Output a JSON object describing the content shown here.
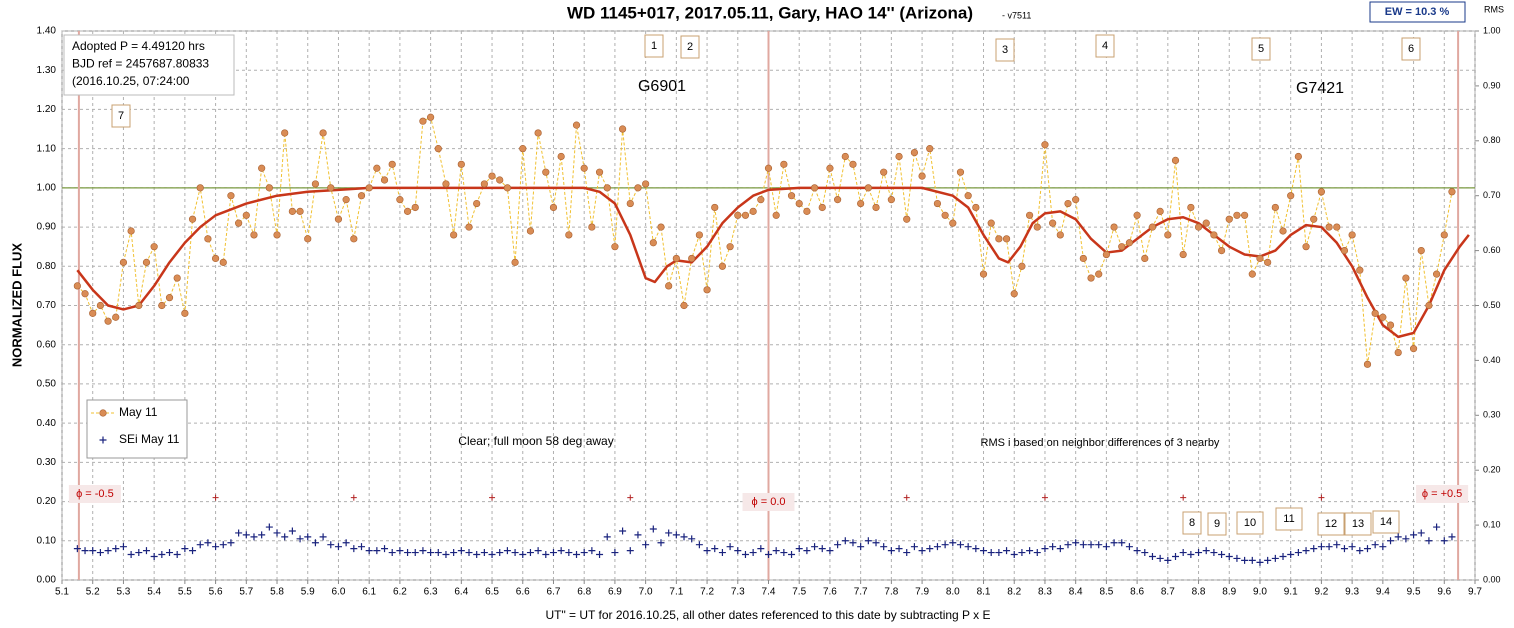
{
  "chart_data": {
    "type": "line",
    "title": "WD 1145+017, 2017.05.11, Gary, HAO 14'' (Arizona)",
    "subtitle": "- v7511",
    "ylabel": "NORMALIZED FLUX",
    "y2label": "RMS",
    "xlabel": "UT\" = UT for 2016.10.25, all other dates referenced to this date by subtracting P x E",
    "ew": "EW = 10.3 %",
    "info": [
      "Adopted P = 4.49120  hrs",
      "BJD ref = 2457687.80833",
      "(2016.10.25,  07:24:00"
    ],
    "annotations": [
      "G6901",
      "G7421",
      "Clear; full moon 58 deg away",
      "RMS i based on neighbor differences of 3 nearby"
    ],
    "dip_labels": [
      "1",
      "2",
      "3",
      "4",
      "5",
      "6",
      "7",
      "8",
      "9",
      "10",
      "11",
      "12",
      "13",
      "14"
    ],
    "x": [
      5.15,
      5.175,
      5.2,
      5.225,
      5.25,
      5.275,
      5.3,
      5.325,
      5.35,
      5.375,
      5.4,
      5.425,
      5.45,
      5.475,
      5.5,
      5.525,
      5.55,
      5.575,
      5.6,
      5.625,
      5.65,
      5.675,
      5.7,
      5.725,
      5.75,
      5.775,
      5.8,
      5.825,
      5.85,
      5.875,
      5.9,
      5.925,
      5.95,
      5.975,
      6.0,
      6.025,
      6.05,
      6.075,
      6.1,
      6.125,
      6.15,
      6.175,
      6.2,
      6.225,
      6.25,
      6.275,
      6.3,
      6.325,
      6.35,
      6.375,
      6.4,
      6.425,
      6.45,
      6.475,
      6.5,
      6.525,
      6.55,
      6.575,
      6.6,
      6.625,
      6.65,
      6.675,
      6.7,
      6.725,
      6.75,
      6.775,
      6.8,
      6.825,
      6.85,
      6.875,
      6.9,
      6.925,
      6.95,
      6.975,
      7.0,
      7.025,
      7.05,
      7.075,
      7.1,
      7.125,
      7.15,
      7.175,
      7.2,
      7.225,
      7.25,
      7.275,
      7.3,
      7.325,
      7.35,
      7.375,
      7.4,
      7.425,
      7.45,
      7.475,
      7.5,
      7.525,
      7.55,
      7.575,
      7.6,
      7.625,
      7.65,
      7.675,
      7.7,
      7.725,
      7.75,
      7.775,
      7.8,
      7.825,
      7.85,
      7.875,
      7.9,
      7.925,
      7.95,
      7.975,
      8.0,
      8.025,
      8.05,
      8.075,
      8.1,
      8.125,
      8.15,
      8.175,
      8.2,
      8.225,
      8.25,
      8.275,
      8.3,
      8.325,
      8.35,
      8.375,
      8.4,
      8.425,
      8.45,
      8.475,
      8.5,
      8.525,
      8.55,
      8.575,
      8.6,
      8.625,
      8.65,
      8.675,
      8.7,
      8.725,
      8.75,
      8.775,
      8.8,
      8.825,
      8.85,
      8.875,
      8.9,
      8.925,
      8.95,
      8.975,
      9.0,
      9.025,
      9.05,
      9.075,
      9.1,
      9.125,
      9.15,
      9.175,
      9.2,
      9.225,
      9.25,
      9.275,
      9.3,
      9.325,
      9.35,
      9.375,
      9.4,
      9.425,
      9.45,
      9.475,
      9.5,
      9.525,
      9.55,
      9.575,
      9.6,
      9.625
    ],
    "series": [
      {
        "name": "May 11",
        "color": "#d98c55",
        "values": [
          0.75,
          0.73,
          0.68,
          0.7,
          0.66,
          0.67,
          0.81,
          0.89,
          0.7,
          0.81,
          0.85,
          0.7,
          0.72,
          0.77,
          0.68,
          0.92,
          1.0,
          0.87,
          0.82,
          0.81,
          0.98,
          0.91,
          0.93,
          0.88,
          1.05,
          1.0,
          0.88,
          1.14,
          0.94,
          0.94,
          0.87,
          1.01,
          1.14,
          1.0,
          0.92,
          0.97,
          0.87,
          0.98,
          1.0,
          1.05,
          1.02,
          1.06,
          0.97,
          0.94,
          0.95,
          1.17,
          1.18,
          1.1,
          1.01,
          0.88,
          1.06,
          0.9,
          0.96,
          1.01,
          1.03,
          1.02,
          1.0,
          0.81,
          1.1,
          0.89,
          1.14,
          1.04,
          0.95,
          1.08,
          0.88,
          1.16,
          1.05,
          0.9,
          1.04,
          1.0,
          0.85,
          1.15,
          0.96,
          1.0,
          1.01,
          0.86,
          0.9,
          0.75,
          0.82,
          0.7,
          0.82,
          0.88,
          0.74,
          0.95,
          0.8,
          0.85,
          0.93,
          0.93,
          0.94,
          0.97,
          1.05,
          0.93,
          1.06,
          0.98,
          0.96,
          0.94,
          1.0,
          0.95,
          1.05,
          0.97,
          1.08,
          1.06,
          0.96,
          1.0,
          0.95,
          1.04,
          0.97,
          1.08,
          0.92,
          1.09,
          1.03,
          1.1,
          0.96,
          0.93,
          0.91,
          1.04,
          0.98,
          0.95,
          0.78,
          0.91,
          0.87,
          0.87,
          0.73,
          0.8,
          0.93,
          0.9,
          1.11,
          0.91,
          0.88,
          0.96,
          0.97,
          0.82,
          0.77,
          0.78,
          0.83,
          0.9,
          0.85,
          0.86,
          0.93,
          0.82,
          0.9,
          0.94,
          0.88,
          1.07,
          0.83,
          0.95,
          0.9,
          0.91,
          0.88,
          0.84,
          0.92,
          0.93,
          0.93,
          0.78,
          0.82,
          0.81,
          0.95,
          0.89,
          0.98,
          1.08,
          0.85,
          0.92,
          0.99,
          0.9,
          0.9,
          0.84,
          0.88,
          0.79,
          0.55,
          0.68,
          0.67,
          0.65,
          0.58,
          0.77,
          0.59,
          0.84,
          0.7,
          0.78,
          0.88,
          0.99
        ]
      },
      {
        "name": "SEi May 11",
        "color": "#1a237e",
        "values": [
          0.08,
          0.075,
          0.075,
          0.07,
          0.075,
          0.08,
          0.085,
          0.065,
          0.07,
          0.075,
          0.06,
          0.065,
          0.07,
          0.065,
          0.08,
          0.075,
          0.09,
          0.095,
          0.085,
          0.09,
          0.095,
          0.12,
          0.115,
          0.11,
          0.115,
          0.135,
          0.12,
          0.11,
          0.125,
          0.105,
          0.11,
          0.095,
          0.11,
          0.09,
          0.085,
          0.095,
          0.08,
          0.085,
          0.075,
          0.075,
          0.08,
          0.07,
          0.075,
          0.07,
          0.07,
          0.075,
          0.07,
          0.07,
          0.065,
          0.07,
          0.075,
          0.07,
          0.065,
          0.07,
          0.065,
          0.07,
          0.075,
          0.07,
          0.065,
          0.07,
          0.075,
          0.065,
          0.07,
          0.075,
          0.07,
          0.065,
          0.07,
          0.075,
          0.065,
          0.11,
          0.07,
          0.125,
          0.075,
          0.115,
          0.09,
          0.13,
          0.095,
          0.12,
          0.115,
          0.11,
          0.105,
          0.09,
          0.075,
          0.08,
          0.07,
          0.085,
          0.075,
          0.065,
          0.07,
          0.08,
          0.065,
          0.075,
          0.07,
          0.065,
          0.08,
          0.075,
          0.085,
          0.08,
          0.075,
          0.09,
          0.1,
          0.095,
          0.085,
          0.1,
          0.095,
          0.085,
          0.075,
          0.08,
          0.07,
          0.085,
          0.075,
          0.08,
          0.085,
          0.09,
          0.095,
          0.09,
          0.085,
          0.08,
          0.075,
          0.07,
          0.07,
          0.075,
          0.065,
          0.07,
          0.075,
          0.07,
          0.08,
          0.085,
          0.08,
          0.09,
          0.095,
          0.09,
          0.09,
          0.09,
          0.085,
          0.095,
          0.095,
          0.085,
          0.075,
          0.07,
          0.06,
          0.055,
          0.05,
          0.06,
          0.07,
          0.065,
          0.07,
          0.075,
          0.07,
          0.065,
          0.06,
          0.055,
          0.05,
          0.05,
          0.045,
          0.05,
          0.055,
          0.06,
          0.065,
          0.07,
          0.075,
          0.08,
          0.085,
          0.085,
          0.09,
          0.08,
          0.085,
          0.075,
          0.08,
          0.09,
          0.085,
          0.1,
          0.11,
          0.105,
          0.115,
          0.12,
          0.1,
          0.135,
          0.1,
          0.11
        ]
      }
    ],
    "fit": {
      "color": "#c8361a",
      "x": [
        5.15,
        5.2,
        5.25,
        5.3,
        5.35,
        5.4,
        5.45,
        5.5,
        5.55,
        5.6,
        5.7,
        5.8,
        5.9,
        6.0,
        6.1,
        6.3,
        6.5,
        6.7,
        6.8,
        6.85,
        6.9,
        6.95,
        7.0,
        7.03,
        7.07,
        7.1,
        7.15,
        7.2,
        7.25,
        7.3,
        7.35,
        7.4,
        7.5,
        7.9,
        8.0,
        8.05,
        8.1,
        8.15,
        8.18,
        8.22,
        8.26,
        8.3,
        8.35,
        8.4,
        8.45,
        8.5,
        8.55,
        8.6,
        8.65,
        8.7,
        8.75,
        8.8,
        8.85,
        8.9,
        8.95,
        9.0,
        9.05,
        9.1,
        9.15,
        9.2,
        9.25,
        9.3,
        9.35,
        9.4,
        9.45,
        9.5,
        9.55,
        9.6,
        9.65,
        9.68
      ],
      "values": [
        0.79,
        0.74,
        0.7,
        0.69,
        0.7,
        0.75,
        0.81,
        0.86,
        0.9,
        0.93,
        0.96,
        0.98,
        0.99,
        0.995,
        1.0,
        1.0,
        1.0,
        1.0,
        1.0,
        0.99,
        0.96,
        0.88,
        0.77,
        0.76,
        0.8,
        0.815,
        0.81,
        0.85,
        0.91,
        0.95,
        0.98,
        0.995,
        1.0,
        1.0,
        0.98,
        0.95,
        0.88,
        0.82,
        0.81,
        0.85,
        0.91,
        0.935,
        0.94,
        0.92,
        0.87,
        0.835,
        0.84,
        0.87,
        0.9,
        0.92,
        0.925,
        0.91,
        0.88,
        0.85,
        0.83,
        0.825,
        0.84,
        0.88,
        0.905,
        0.9,
        0.86,
        0.8,
        0.72,
        0.65,
        0.62,
        0.63,
        0.7,
        0.79,
        0.85,
        0.88
      ]
    },
    "baseline": {
      "value": 1.0,
      "color": "#7a9a40"
    },
    "phase_lines": [
      {
        "x": 5.155,
        "label": "ϕ = -0.5"
      },
      {
        "x": 7.4,
        "label": "ϕ = 0.0"
      },
      {
        "x": 9.645,
        "label": "ϕ = +0.5"
      }
    ],
    "markers": {
      "color": "#b22222",
      "x": [
        5.6,
        6.05,
        6.5,
        6.95,
        7.85,
        8.3,
        8.75,
        9.2
      ],
      "values": [
        0.21,
        0.21,
        0.21,
        0.21,
        0.21,
        0.21,
        0.21,
        0.21
      ]
    },
    "xlim": [
      5.1,
      9.7
    ],
    "ylim": [
      0,
      1.4
    ],
    "y2lim": [
      0,
      1.0
    ],
    "xticks": [
      5.1,
      5.2,
      5.3,
      5.4,
      5.5,
      5.6,
      5.7,
      5.8,
      5.9,
      {
        "value": 6,
        "label": "6.0"
      },
      6.1,
      6.2,
      6.3,
      6.4,
      6.5,
      6.6,
      6.7,
      6.8,
      6.9,
      {
        "value": 7,
        "label": "7.0"
      },
      7.1,
      7.2,
      7.3,
      7.4,
      7.5,
      7.6,
      7.7,
      7.8,
      7.9,
      {
        "value": 8,
        "label": "8.0"
      },
      8.1,
      8.2,
      8.3,
      8.4,
      8.5,
      8.6,
      8.7,
      8.8,
      8.9,
      {
        "value": 9,
        "label": "9.0"
      },
      9.1,
      9.2,
      9.3,
      9.4,
      9.5,
      9.6,
      9.7
    ],
    "yticks": [
      {
        "value": 0,
        "label": "0.00"
      },
      {
        "value": 0.1,
        "label": "0.10"
      },
      {
        "value": 0.2,
        "label": "0.20"
      },
      {
        "value": 0.3,
        "label": "0.30"
      },
      {
        "value": 0.4,
        "label": "0.40"
      },
      {
        "value": 0.5,
        "label": "0.50"
      },
      {
        "value": 0.6,
        "label": "0.60"
      },
      {
        "value": 0.7,
        "label": "0.70"
      },
      {
        "value": 0.8,
        "label": "0.80"
      },
      {
        "value": 0.9,
        "label": "0.90"
      },
      {
        "value": 1.0,
        "label": "1.00"
      },
      {
        "value": 1.1,
        "label": "1.10"
      },
      {
        "value": 1.2,
        "label": "1.20"
      },
      {
        "value": 1.3,
        "label": "1.30"
      },
      {
        "value": 1.4,
        "label": "1.40"
      }
    ],
    "y2ticks": [
      {
        "value": 0,
        "label": "0.00"
      },
      {
        "value": 0.1,
        "label": "0.10"
      },
      {
        "value": 0.2,
        "label": "0.20"
      },
      {
        "value": 0.3,
        "label": "0.30"
      },
      {
        "value": 0.4,
        "label": "0.40"
      },
      {
        "value": 0.5,
        "label": "0.50"
      },
      {
        "value": 0.6,
        "label": "0.60"
      },
      {
        "value": 0.7,
        "label": "0.70"
      },
      {
        "value": 0.8,
        "label": "0.80"
      },
      {
        "value": 0.9,
        "label": "0.90"
      },
      {
        "value": 1.0,
        "label": "1.00"
      }
    ],
    "grid": true,
    "legend": "lower left"
  }
}
